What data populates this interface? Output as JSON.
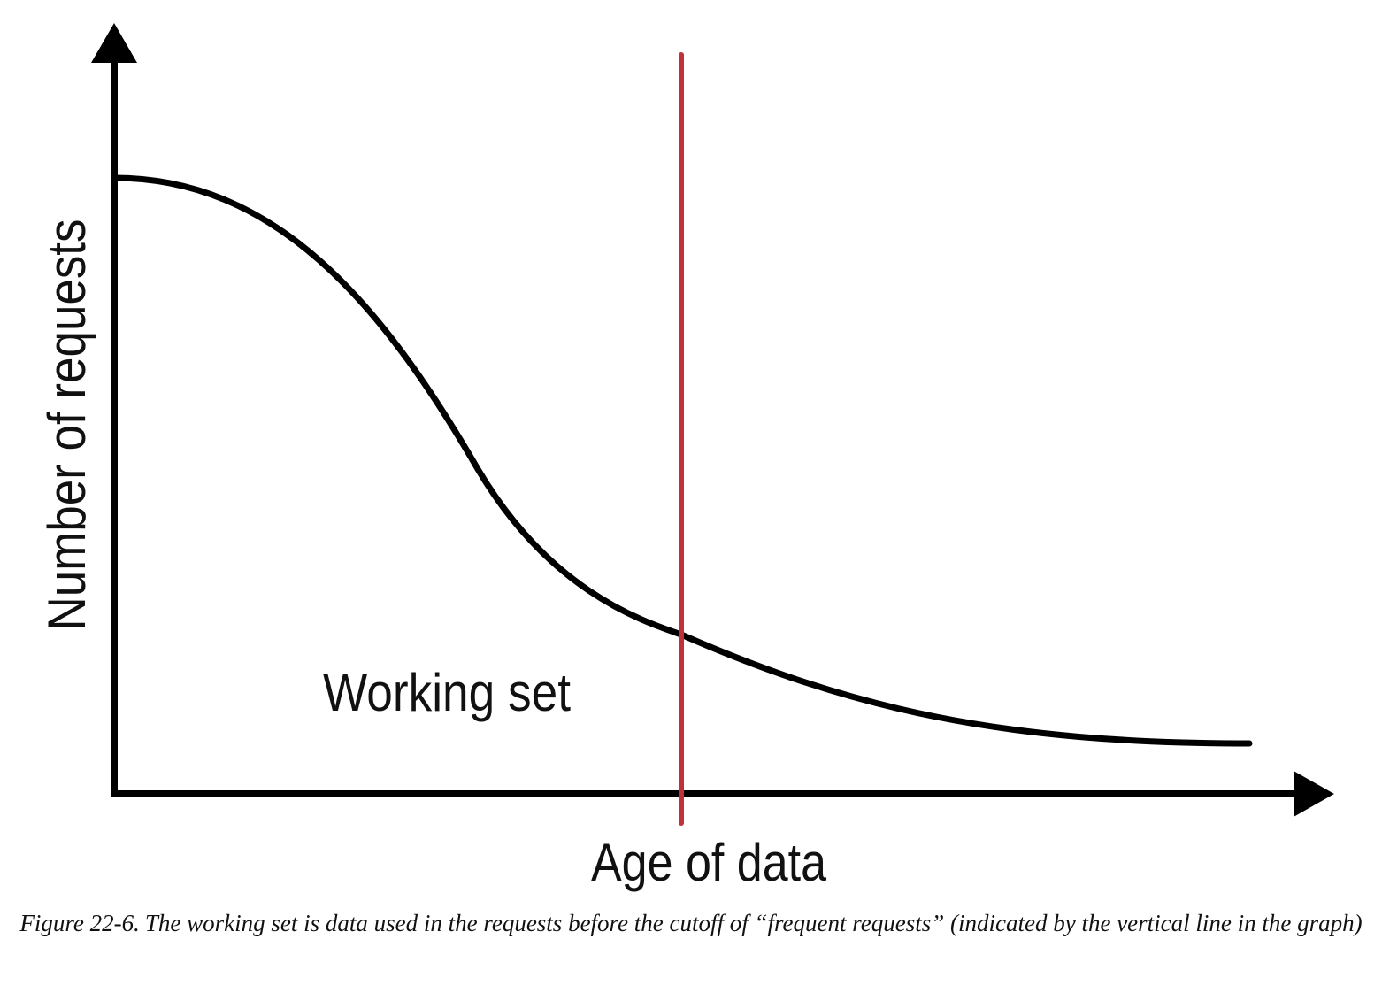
{
  "figure": {
    "y_axis_label": "Number of requests",
    "x_axis_label": "Age of data",
    "region_label": "Working set"
  },
  "caption": {
    "number": "Figure 22-6.",
    "text": "The working set is data used in the requests before the cutoff of “frequent requests” (indicated by the vertical line in the graph)"
  },
  "colors": {
    "curve": "#000000",
    "axes": "#000000",
    "cutoff_line": "#c0323a"
  }
}
